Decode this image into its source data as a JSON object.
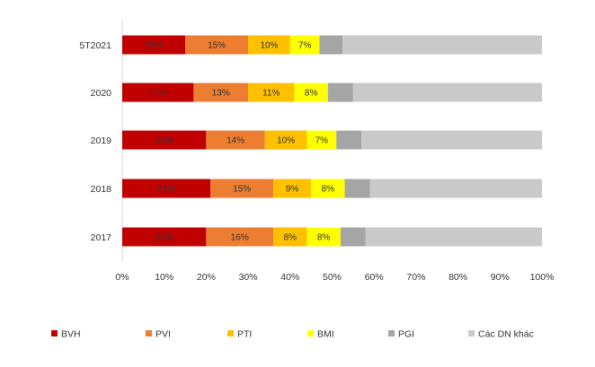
{
  "chart_data": {
    "type": "bar",
    "orientation": "horizontal",
    "stacked": true,
    "percent_stacked": true,
    "categories": [
      "5T2021",
      "2020",
      "2019",
      "2018",
      "2017"
    ],
    "series": [
      {
        "name": "BVH",
        "color": "#C00000",
        "values": [
          15,
          17,
          20,
          21,
          20
        ],
        "labels": [
          "15%",
          "17%",
          "20%",
          "21%",
          "20%"
        ]
      },
      {
        "name": "PVI",
        "color": "#ED7D31",
        "values": [
          15,
          13,
          14,
          15,
          16
        ],
        "labels": [
          "15%",
          "13%",
          "14%",
          "15%",
          "16%"
        ]
      },
      {
        "name": "PTI",
        "color": "#FFC000",
        "values": [
          10,
          11,
          10,
          9,
          8
        ],
        "labels": [
          "10%",
          "11%",
          "10%",
          "9%",
          "8%"
        ]
      },
      {
        "name": "BMI",
        "color": "#FFFF00",
        "values": [
          7,
          8,
          7,
          8,
          8
        ],
        "labels": [
          "7%",
          "8%",
          "7%",
          "8%",
          "8%"
        ]
      },
      {
        "name": "PGI",
        "color": "#A5A5A5",
        "values": [
          5.5,
          6,
          6,
          6,
          6
        ],
        "labels": [
          "",
          "",
          "",
          "",
          ""
        ]
      },
      {
        "name": "Các DN  khác",
        "color": "#C9C9C9",
        "values": [
          47.5,
          45,
          43,
          41,
          42
        ],
        "labels": [
          "",
          "",
          "",
          "",
          ""
        ]
      }
    ],
    "xlim": [
      0,
      100
    ],
    "xticks": [
      "0%",
      "10%",
      "20%",
      "30%",
      "40%",
      "50%",
      "60%",
      "70%",
      "80%",
      "90%",
      "100%"
    ],
    "title": "",
    "xlabel": "",
    "ylabel": "",
    "legend_position": "bottom",
    "grid": false
  }
}
